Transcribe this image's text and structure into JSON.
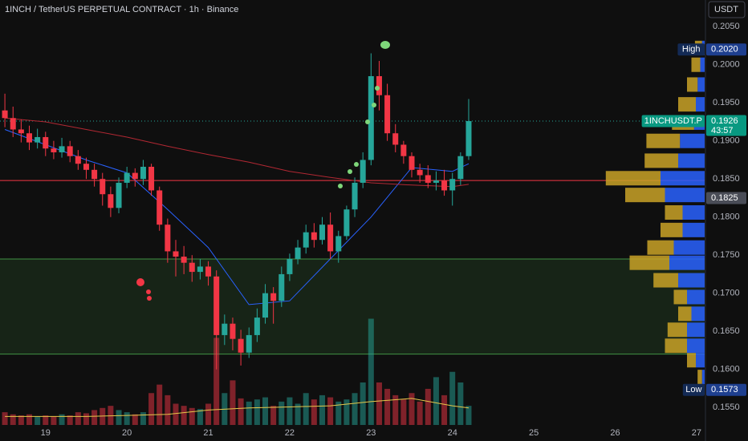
{
  "header": {
    "title": "1INCH / TetherUS PERPETUAL CONTRACT · 1h · Binance",
    "currency": "USDT"
  },
  "chart_data": {
    "type": "candlestick",
    "x": [
      18.5,
      18.6,
      18.7,
      18.8,
      18.9,
      19.0,
      19.1,
      19.2,
      19.3,
      19.4,
      19.5,
      19.6,
      19.7,
      19.8,
      19.9,
      20.0,
      20.1,
      20.2,
      20.3,
      20.4,
      20.5,
      20.6,
      20.7,
      20.8,
      20.9,
      21.0,
      21.1,
      21.2,
      21.3,
      21.4,
      21.5,
      21.6,
      21.7,
      21.8,
      21.9,
      22.0,
      22.1,
      22.2,
      22.3,
      22.4,
      22.5,
      22.6,
      22.7,
      22.8,
      22.9,
      23.0,
      23.1,
      23.2,
      23.3,
      23.4,
      23.5,
      23.6,
      23.7,
      23.8,
      23.9,
      24.0,
      24.1,
      24.2
    ],
    "open": [
      0.194,
      0.193,
      0.1915,
      0.191,
      0.1898,
      0.1905,
      0.189,
      0.1885,
      0.1893,
      0.188,
      0.187,
      0.1862,
      0.185,
      0.183,
      0.1812,
      0.1845,
      0.1858,
      0.185,
      0.1866,
      0.1835,
      0.179,
      0.1755,
      0.1748,
      0.174,
      0.1728,
      0.1735,
      0.1722,
      0.1645,
      0.166,
      0.164,
      0.1622,
      0.1645,
      0.1668,
      0.17,
      0.169,
      0.1725,
      0.1745,
      0.176,
      0.178,
      0.177,
      0.179,
      0.1755,
      0.1775,
      0.181,
      0.1845,
      0.1875,
      0.1985,
      0.196,
      0.191,
      0.1895,
      0.188,
      0.1862,
      0.1855,
      0.1845,
      0.1848,
      0.1835,
      0.185,
      0.188
    ],
    "high": [
      0.1962,
      0.1945,
      0.1928,
      0.192,
      0.1916,
      0.1912,
      0.19,
      0.1904,
      0.19,
      0.1888,
      0.1878,
      0.187,
      0.1858,
      0.184,
      0.1852,
      0.1866,
      0.1864,
      0.1875,
      0.187,
      0.184,
      0.1798,
      0.177,
      0.1762,
      0.175,
      0.1745,
      0.1742,
      0.173,
      0.1672,
      0.1668,
      0.1652,
      0.1655,
      0.168,
      0.1712,
      0.1708,
      0.1735,
      0.1752,
      0.177,
      0.179,
      0.1792,
      0.18,
      0.1806,
      0.1782,
      0.1815,
      0.1852,
      0.1885,
      0.2015,
      0.2005,
      0.1975,
      0.1922,
      0.19,
      0.1885,
      0.187,
      0.1868,
      0.186,
      0.1862,
      0.1858,
      0.1885,
      0.1955
    ],
    "low": [
      0.1918,
      0.1905,
      0.1898,
      0.1888,
      0.189,
      0.188,
      0.1876,
      0.1878,
      0.1872,
      0.1862,
      0.185,
      0.184,
      0.1815,
      0.18,
      0.1805,
      0.1838,
      0.184,
      0.1842,
      0.1828,
      0.1782,
      0.174,
      0.1722,
      0.1725,
      0.1715,
      0.1718,
      0.171,
      0.16,
      0.1632,
      0.1625,
      0.1605,
      0.1615,
      0.1636,
      0.166,
      0.166,
      0.1682,
      0.1716,
      0.1738,
      0.1752,
      0.176,
      0.1764,
      0.1745,
      0.174,
      0.177,
      0.18,
      0.1838,
      0.1868,
      0.194,
      0.19,
      0.1885,
      0.187,
      0.1852,
      0.1845,
      0.1838,
      0.1835,
      0.1828,
      0.1815,
      0.1842,
      0.1875
    ],
    "close": [
      0.193,
      0.1915,
      0.191,
      0.1898,
      0.1905,
      0.189,
      0.1885,
      0.1893,
      0.188,
      0.187,
      0.1862,
      0.185,
      0.183,
      0.1812,
      0.1845,
      0.1858,
      0.185,
      0.1866,
      0.1835,
      0.179,
      0.1755,
      0.1748,
      0.174,
      0.1728,
      0.1735,
      0.1722,
      0.1645,
      0.166,
      0.164,
      0.1622,
      0.1645,
      0.1668,
      0.17,
      0.169,
      0.1725,
      0.1745,
      0.176,
      0.178,
      0.177,
      0.179,
      0.1755,
      0.1775,
      0.181,
      0.1845,
      0.1875,
      0.1985,
      0.196,
      0.191,
      0.1895,
      0.188,
      0.1862,
      0.1855,
      0.1845,
      0.1848,
      0.1835,
      0.185,
      0.188,
      0.1926
    ],
    "volume": [
      12,
      10,
      9,
      10,
      8,
      9,
      8,
      10,
      9,
      12,
      11,
      14,
      16,
      18,
      14,
      12,
      10,
      12,
      30,
      38,
      28,
      20,
      18,
      16,
      15,
      20,
      82,
      30,
      42,
      25,
      22,
      24,
      26,
      18,
      22,
      26,
      20,
      30,
      24,
      28,
      26,
      22,
      24,
      30,
      40,
      100,
      40,
      34,
      28,
      24,
      30,
      22,
      34,
      45,
      28,
      50,
      40,
      18
    ],
    "volume_lim": [
      0,
      400
    ],
    "colors": {
      "up": "#26a69a",
      "down": "#f23645"
    },
    "moving_averages": [
      {
        "color": "#2962ff",
        "x": [
          18.5,
          19,
          19.5,
          20,
          20.5,
          21,
          21.5,
          22,
          22.5,
          23,
          23.5,
          24,
          24.2
        ],
        "values": [
          0.1915,
          0.1895,
          0.1875,
          0.1858,
          0.181,
          0.176,
          0.1685,
          0.169,
          0.1745,
          0.18,
          0.1865,
          0.186,
          0.187
        ]
      },
      {
        "color": "#b22833",
        "x": [
          18.5,
          19,
          19.5,
          20,
          20.5,
          21,
          21.5,
          22,
          22.5,
          23,
          23.5,
          24,
          24.2
        ],
        "values": [
          0.193,
          0.1925,
          0.1915,
          0.1905,
          0.1893,
          0.1882,
          0.1872,
          0.186,
          0.1852,
          0.1845,
          0.1842,
          0.184,
          0.1843
        ]
      }
    ],
    "volume_ma": {
      "color": "#e6c84a",
      "x": [
        18.5,
        19,
        19.5,
        20,
        20.5,
        21,
        21.5,
        22,
        22.5,
        23,
        23.5,
        24,
        24.2
      ],
      "values": [
        8,
        8,
        8,
        9,
        10,
        14,
        16,
        17,
        18,
        22,
        25,
        18,
        16
      ]
    },
    "volume_profile": {
      "colors": {
        "buy": "#2962ff",
        "sell": "#c9a227"
      },
      "price": [
        0.2022,
        0.2,
        0.1974,
        0.1948,
        0.1924,
        0.19,
        0.1874,
        0.1851,
        0.1829,
        0.1806,
        0.1783,
        0.176,
        0.174,
        0.1717,
        0.1695,
        0.1673,
        0.1652,
        0.1631,
        0.1612,
        0.159
      ],
      "buy": [
        3,
        5,
        8,
        10,
        12,
        28,
        30,
        50,
        45,
        25,
        25,
        35,
        40,
        30,
        20,
        15,
        20,
        20,
        10,
        3
      ],
      "sell": [
        8,
        10,
        12,
        20,
        25,
        38,
        38,
        62,
        45,
        20,
        25,
        30,
        45,
        28,
        15,
        15,
        22,
        25,
        10,
        5
      ]
    },
    "levels": {
      "high": {
        "label": "High",
        "value": 0.202,
        "value_label": "0.2020"
      },
      "last": {
        "label": "1INCHUSDT.P",
        "value": 0.1926,
        "value_label": "0.1926",
        "countdown": "43:57"
      },
      "mark": {
        "value": 0.1825,
        "value_label": "0.1825"
      },
      "low": {
        "label": "Low",
        "value": 0.1573,
        "value_label": "0.1573"
      },
      "resistance": {
        "value": 0.1848,
        "color": "#f23645"
      },
      "zone": {
        "top": 0.1745,
        "bottom": 0.162,
        "color": "#4caf50"
      }
    },
    "ylim": [
      0.1527,
      0.2085
    ],
    "yticks": [
      {
        "value": 0.205,
        "label": "0.2050"
      },
      {
        "value": 0.2,
        "label": "0.2000"
      },
      {
        "value": 0.195,
        "label": "0.1950"
      },
      {
        "value": 0.19,
        "label": "0.1900"
      },
      {
        "value": 0.185,
        "label": "0.1850"
      },
      {
        "value": 0.18,
        "label": "0.1800"
      },
      {
        "value": 0.175,
        "label": "0.1750"
      },
      {
        "value": 0.17,
        "label": "0.1700"
      },
      {
        "value": 0.165,
        "label": "0.1650"
      },
      {
        "value": 0.16,
        "label": "0.1600"
      },
      {
        "value": 0.155,
        "label": "0.1550"
      }
    ],
    "xlim": [
      18.44,
      27.1
    ],
    "xticks": [
      19,
      20,
      21,
      22,
      23,
      24,
      25,
      26,
      27
    ]
  }
}
